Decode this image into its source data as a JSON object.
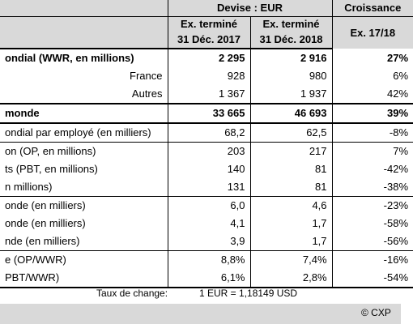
{
  "header": {
    "currency": "Devise : EUR",
    "growth": "Croissance",
    "col1_line1": "Ex. terminé",
    "col1_line2": "31 Déc. 2017",
    "col2_line1": "Ex. terminé",
    "col2_line2": "31 Déc. 2018",
    "col3": "Ex. 17/18"
  },
  "rows": [
    {
      "label": "ondial (WWR, en millions)",
      "v2017": "2 295",
      "v2018": "2 916",
      "growth": "27%"
    },
    {
      "label": "France",
      "v2017": "928",
      "v2018": "980",
      "growth": "6%"
    },
    {
      "label": "Autres",
      "v2017": "1 367",
      "v2018": "1 937",
      "growth": "42%"
    },
    {
      "label": "monde",
      "v2017": "33 665",
      "v2018": "46 693",
      "growth": "39%"
    },
    {
      "label": "ondial par employé (en milliers)",
      "v2017": "68,2",
      "v2018": "62,5",
      "growth": "-8%"
    },
    {
      "label": "on (OP, en millions)",
      "v2017": "203",
      "v2018": "217",
      "growth": "7%"
    },
    {
      "label": "ts (PBT, en millions)",
      "v2017": "140",
      "v2018": "81",
      "growth": "-42%"
    },
    {
      "label": "n millions)",
      "v2017": "131",
      "v2018": "81",
      "growth": "-38%"
    },
    {
      "label": "onde (en milliers)",
      "v2017": "6,0",
      "v2018": "4,6",
      "growth": "-23%"
    },
    {
      "label": "onde (en milliers)",
      "v2017": "4,1",
      "v2018": "1,7",
      "growth": "-58%"
    },
    {
      "label": "nde (en milliers)",
      "v2017": "3,9",
      "v2018": "1,7",
      "growth": "-56%"
    },
    {
      "label": "e (OP/WWR)",
      "v2017": "8,8%",
      "v2018": "7,4%",
      "growth": "-16%"
    },
    {
      "label": "PBT/WWR)",
      "v2017": "6,1%",
      "v2018": "2,8%",
      "growth": "-54%"
    }
  ],
  "footer": {
    "fx_label": "Taux de change:",
    "fx_value": "1 EUR =   1,18149 USD",
    "copyright": "© CXP"
  }
}
